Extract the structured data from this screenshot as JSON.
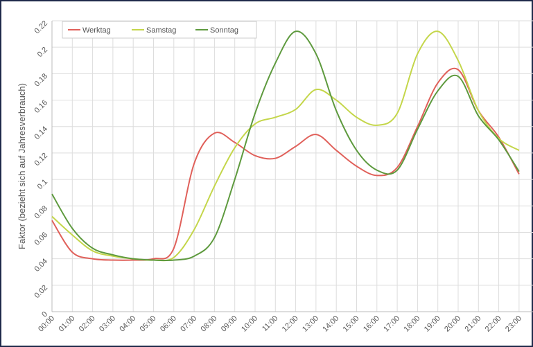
{
  "chart_data": {
    "type": "line",
    "ylabel": "Faktor (bezieht sich auf Jahresverbrauch)",
    "categories": [
      "00:00",
      "01:00",
      "02:00",
      "03:00",
      "04:00",
      "05:00",
      "06:00",
      "07:00",
      "08:00",
      "09:00",
      "10:00",
      "11:00",
      "12:00",
      "13:00",
      "14:00",
      "15:00",
      "16:00",
      "17:00",
      "18:00",
      "19:00",
      "20:00",
      "21:00",
      "22:00",
      "23:00"
    ],
    "series": [
      {
        "name": "Werktag",
        "color": "#e0605a",
        "values": [
          0.069,
          0.045,
          0.04,
          0.039,
          0.039,
          0.04,
          0.048,
          0.112,
          0.135,
          0.128,
          0.118,
          0.116,
          0.125,
          0.134,
          0.122,
          0.11,
          0.103,
          0.109,
          0.14,
          0.173,
          0.183,
          0.152,
          0.132,
          0.104
        ]
      },
      {
        "name": "Samstag",
        "color": "#c4d64a",
        "values": [
          0.072,
          0.058,
          0.046,
          0.042,
          0.04,
          0.039,
          0.041,
          0.062,
          0.095,
          0.124,
          0.142,
          0.147,
          0.153,
          0.168,
          0.16,
          0.147,
          0.141,
          0.15,
          0.195,
          0.212,
          0.19,
          0.152,
          0.131,
          0.122
        ]
      },
      {
        "name": "Sonntag",
        "color": "#5e9a3e",
        "values": [
          0.089,
          0.063,
          0.048,
          0.043,
          0.04,
          0.039,
          0.039,
          0.042,
          0.056,
          0.1,
          0.15,
          0.188,
          0.212,
          0.195,
          0.152,
          0.122,
          0.107,
          0.107,
          0.138,
          0.167,
          0.178,
          0.148,
          0.13,
          0.106
        ]
      }
    ],
    "ylim": [
      0,
      0.22
    ],
    "yticks": [
      0,
      0.02,
      0.04,
      0.06,
      0.08,
      0.1,
      0.12,
      0.14,
      0.16,
      0.18,
      0.2,
      0.22
    ],
    "grid": true,
    "legend": "top-left"
  }
}
